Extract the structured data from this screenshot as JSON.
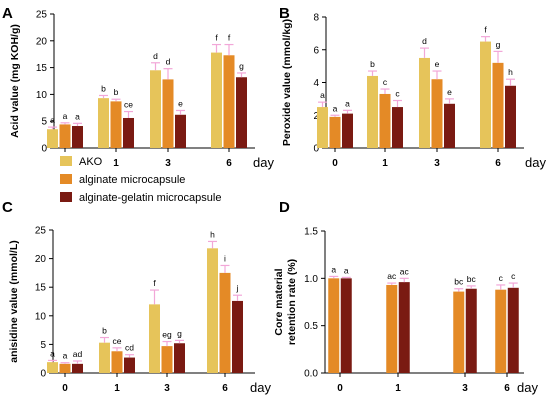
{
  "colors": {
    "AKO": "#e6c45a",
    "alginate microcapsule": "#e48a26",
    "alginate-gelatin microcapsule": "#7a1a12",
    "error": "#f2a7d8"
  },
  "legend": [
    "AKO",
    "alginate microcapsule",
    "alginate-gelatin microcapsule"
  ],
  "chart_data": [
    {
      "panel": "A",
      "type": "bar",
      "categories": [
        "0",
        "1",
        "3",
        "6"
      ],
      "x_unit": "day",
      "ylabel": "Acid value (mg KOH/g)",
      "ylim": [
        0,
        25
      ],
      "yticks": [
        0,
        5,
        10,
        15,
        20,
        25
      ],
      "series": [
        {
          "name": "AKO",
          "values": [
            3.5,
            9.3,
            14.5,
            17.8
          ],
          "errors": [
            0.4,
            0.5,
            1.4,
            1.5
          ],
          "letters": [
            "a",
            "b",
            "d",
            "f"
          ]
        },
        {
          "name": "alginate microcapsule",
          "values": [
            4.4,
            8.7,
            12.8,
            17.3
          ],
          "errors": [
            0.3,
            0.4,
            2.0,
            2.0
          ],
          "letters": [
            "a",
            "b",
            "d",
            "f"
          ]
        },
        {
          "name": "alginate-gelatin microcapsule",
          "values": [
            4.1,
            5.6,
            6.2,
            13.2
          ],
          "errors": [
            0.5,
            1.2,
            0.8,
            0.8
          ],
          "letters": [
            "a",
            "ce",
            "e",
            "g"
          ]
        }
      ]
    },
    {
      "panel": "B",
      "type": "bar",
      "categories": [
        "0",
        "1",
        "3",
        "6"
      ],
      "x_unit": "day",
      "ylabel": "Peroxide value (mmol/kg)",
      "ylim": [
        0,
        8
      ],
      "yticks": [
        0,
        2,
        4,
        6,
        8
      ],
      "series": [
        {
          "name": "AKO",
          "values": [
            2.5,
            4.4,
            5.5,
            6.5
          ],
          "errors": [
            0.3,
            0.3,
            0.6,
            0.3
          ],
          "letters": [
            "a",
            "b",
            "d",
            "f"
          ]
        },
        {
          "name": "alginate microcapsule",
          "values": [
            1.9,
            3.3,
            4.2,
            5.2
          ],
          "errors": [
            0.1,
            0.3,
            0.5,
            0.7
          ],
          "letters": [
            "a",
            "c",
            "e",
            "g"
          ]
        },
        {
          "name": "alginate-gelatin microcapsule",
          "values": [
            2.1,
            2.5,
            2.7,
            3.8
          ],
          "errors": [
            0.2,
            0.4,
            0.3,
            0.4
          ],
          "letters": [
            "a",
            "c",
            "e",
            "h"
          ]
        }
      ]
    },
    {
      "panel": "C",
      "type": "bar",
      "categories": [
        "0",
        "1",
        "3",
        "6"
      ],
      "x_unit": "day",
      "ylabel": "anisidine value (mmol/L)",
      "ylim": [
        0,
        25
      ],
      "yticks": [
        0,
        5,
        10,
        15,
        20,
        25
      ],
      "series": [
        {
          "name": "AKO",
          "values": [
            1.9,
            5.3,
            12.0,
            21.8
          ],
          "errors": [
            0.3,
            0.9,
            2.5,
            1.2
          ],
          "letters": [
            "a",
            "b",
            "f",
            "h"
          ]
        },
        {
          "name": "alginate microcapsule",
          "values": [
            1.6,
            3.8,
            4.7,
            17.5
          ],
          "errors": [
            0.2,
            0.6,
            0.8,
            1.3
          ],
          "letters": [
            "a",
            "ce",
            "eg",
            "i"
          ]
        },
        {
          "name": "alginate-gelatin microcapsule",
          "values": [
            1.6,
            2.7,
            5.2,
            12.6
          ],
          "errors": [
            0.5,
            0.5,
            0.5,
            1.0
          ],
          "letters": [
            "ad",
            "cd",
            "g",
            "j"
          ]
        }
      ]
    },
    {
      "panel": "D",
      "type": "bar",
      "categories": [
        "0",
        "1",
        "3",
        "6"
      ],
      "x_unit": "day",
      "ylabel": "Core material retention rate (%)",
      "ylim": [
        0,
        1.5
      ],
      "yticks": [
        0.0,
        0.5,
        1.0,
        1.5
      ],
      "series": [
        {
          "name": "alginate microcapsule",
          "values": [
            1.0,
            0.93,
            0.86,
            0.88
          ],
          "errors": [
            0.02,
            0.02,
            0.03,
            0.05
          ],
          "letters": [
            "a",
            "ac",
            "bc",
            "c"
          ]
        },
        {
          "name": "alginate-gelatin microcapsule",
          "values": [
            1.0,
            0.96,
            0.89,
            0.9
          ],
          "errors": [
            0.01,
            0.04,
            0.03,
            0.05
          ],
          "letters": [
            "a",
            "ac",
            "bc",
            "c"
          ]
        }
      ]
    }
  ]
}
